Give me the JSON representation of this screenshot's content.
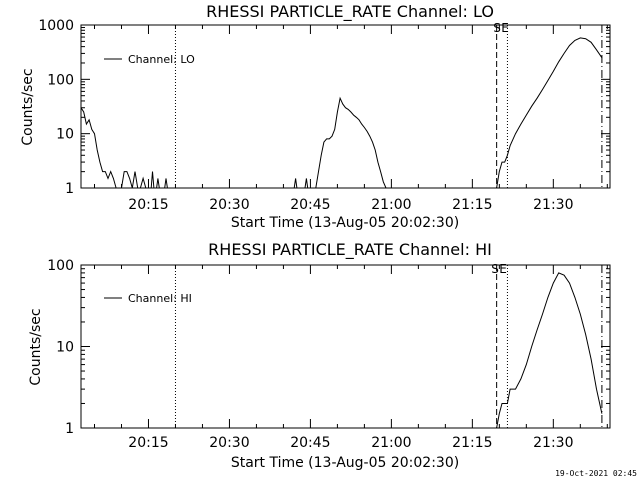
{
  "footer_timestamp": "19-Oct-2021 02:45",
  "colors": {
    "background": "#ffffff",
    "foreground": "#000000"
  },
  "chart_data": [
    {
      "type": "line",
      "title": "RHESSI PARTICLE_RATE Channel: LO",
      "xlabel": "Start Time (13-Aug-05 20:02:30)",
      "ylabel": "Counts/sec",
      "yscale": "log",
      "ylim": [
        1,
        1000
      ],
      "ytick_labels": [
        "1",
        "10",
        "100",
        "1000"
      ],
      "xlim": [
        "20:02:30",
        "21:40:30"
      ],
      "xtick_labels": [
        "20:15",
        "20:30",
        "20:45",
        "21:00",
        "21:15",
        "21:30"
      ],
      "legend_position": "top-left",
      "markers": [
        {
          "time": "20:20:00",
          "style": "dotted",
          "label": ""
        },
        {
          "time": "21:19:30",
          "style": "dashed",
          "label": "S"
        },
        {
          "time": "21:21:30",
          "style": "dotted",
          "label": "E"
        },
        {
          "time": "21:39:00",
          "style": "dash-dot",
          "label": ""
        }
      ],
      "series": [
        {
          "name": "Channel: LO",
          "segments": [
            [
              [
                "20:02:30",
                30
              ],
              [
                "20:03:00",
                25
              ],
              [
                "20:03:30",
                15
              ],
              [
                "20:04:00",
                18
              ],
              [
                "20:04:30",
                12
              ],
              [
                "20:05:00",
                10
              ],
              [
                "20:05:30",
                5
              ],
              [
                "20:06:00",
                3
              ],
              [
                "20:06:30",
                2
              ],
              [
                "20:07:00",
                2
              ],
              [
                "20:07:30",
                1.5
              ],
              [
                "20:08:00",
                2
              ],
              [
                "20:08:30",
                1.5
              ],
              [
                "20:09:00",
                1
              ],
              [
                "20:10:00",
                1
              ],
              [
                "20:10:30",
                2
              ],
              [
                "20:11:00",
                2
              ],
              [
                "20:11:30",
                1.5
              ],
              [
                "20:12:00",
                1
              ],
              [
                "20:12:30",
                2
              ],
              [
                "20:13:00",
                1
              ],
              [
                "20:13:30",
                1
              ],
              [
                "20:14:00",
                1.5
              ],
              [
                "20:14:30",
                1
              ],
              [
                "20:15:30",
                1
              ],
              [
                "20:15:45",
                2
              ],
              [
                "20:16:00",
                1
              ]
            ],
            [
              [
                "20:16:30",
                1
              ],
              [
                "20:16:45",
                1.5
              ],
              [
                "20:17:00",
                1
              ],
              [
                "20:18:00",
                1
              ],
              [
                "20:18:15",
                1.5
              ],
              [
                "20:18:30",
                1
              ]
            ],
            [
              [
                "20:42:00",
                1
              ],
              [
                "20:42:15",
                1.5
              ],
              [
                "20:42:30",
                1
              ]
            ],
            [
              [
                "20:44:00",
                1
              ],
              [
                "20:44:15",
                1.5
              ],
              [
                "20:44:30",
                1
              ]
            ],
            [
              [
                "20:46:00",
                1
              ],
              [
                "20:46:30",
                2
              ],
              [
                "20:47:00",
                4
              ],
              [
                "20:47:30",
                7
              ],
              [
                "20:48:00",
                8
              ],
              [
                "20:48:30",
                8
              ],
              [
                "20:49:00",
                9
              ],
              [
                "20:49:30",
                12
              ],
              [
                "20:50:00",
                25
              ],
              [
                "20:50:30",
                45
              ],
              [
                "20:51:00",
                35
              ],
              [
                "20:51:30",
                30
              ],
              [
                "20:52:00",
                28
              ],
              [
                "20:52:30",
                25
              ],
              [
                "20:53:00",
                22
              ],
              [
                "20:53:30",
                20
              ],
              [
                "20:54:00",
                18
              ],
              [
                "20:54:30",
                15
              ],
              [
                "20:55:00",
                13
              ],
              [
                "20:55:30",
                11
              ],
              [
                "20:56:00",
                9
              ],
              [
                "20:56:30",
                7
              ],
              [
                "20:57:00",
                5
              ],
              [
                "20:57:30",
                3
              ],
              [
                "20:58:00",
                2
              ],
              [
                "20:58:30",
                1.3
              ],
              [
                "20:59:00",
                1
              ]
            ],
            [
              [
                "21:19:30",
                1
              ],
              [
                "21:20:00",
                2
              ],
              [
                "21:20:30",
                3
              ],
              [
                "21:21:00",
                3
              ],
              [
                "21:21:30",
                4
              ],
              [
                "21:22:00",
                6
              ],
              [
                "21:23:00",
                10
              ],
              [
                "21:24:00",
                15
              ],
              [
                "21:25:00",
                22
              ],
              [
                "21:26:00",
                32
              ],
              [
                "21:27:00",
                45
              ],
              [
                "21:28:00",
                65
              ],
              [
                "21:29:00",
                95
              ],
              [
                "21:30:00",
                140
              ],
              [
                "21:31:00",
                210
              ],
              [
                "21:32:00",
                300
              ],
              [
                "21:33:00",
                420
              ],
              [
                "21:34:00",
                520
              ],
              [
                "21:35:00",
                580
              ],
              [
                "21:36:00",
                560
              ],
              [
                "21:37:00",
                480
              ],
              [
                "21:38:00",
                350
              ],
              [
                "21:39:00",
                250
              ]
            ]
          ]
        }
      ]
    },
    {
      "type": "line",
      "title": "RHESSI PARTICLE_RATE Channel: HI",
      "xlabel": "Start Time (13-Aug-05 20:02:30)",
      "ylabel": "Counts/sec",
      "yscale": "log",
      "ylim": [
        1,
        100
      ],
      "ytick_labels": [
        "1",
        "10",
        "100"
      ],
      "xlim": [
        "20:02:30",
        "21:40:30"
      ],
      "xtick_labels": [
        "20:15",
        "20:30",
        "20:45",
        "21:00",
        "21:15",
        "21:30"
      ],
      "legend_position": "top-left",
      "markers": [
        {
          "time": "20:20:00",
          "style": "dotted",
          "label": ""
        },
        {
          "time": "21:19:30",
          "style": "dashed",
          "label": "S"
        },
        {
          "time": "21:21:30",
          "style": "dotted",
          "label": "E"
        },
        {
          "time": "21:39:00",
          "style": "dash-dot",
          "label": ""
        }
      ],
      "series": [
        {
          "name": "Channel: HI",
          "segments": [
            [
              [
                "21:19:30",
                1
              ],
              [
                "21:20:00",
                1.5
              ],
              [
                "21:20:30",
                2
              ],
              [
                "21:21:30",
                2
              ],
              [
                "21:22:00",
                3
              ],
              [
                "21:23:00",
                3
              ],
              [
                "21:24:00",
                4
              ],
              [
                "21:25:00",
                6
              ],
              [
                "21:26:00",
                10
              ],
              [
                "21:27:00",
                16
              ],
              [
                "21:28:00",
                25
              ],
              [
                "21:29:00",
                40
              ],
              [
                "21:30:00",
                60
              ],
              [
                "21:31:00",
                80
              ],
              [
                "21:32:00",
                75
              ],
              [
                "21:33:00",
                60
              ],
              [
                "21:34:00",
                40
              ],
              [
                "21:35:00",
                25
              ],
              [
                "21:36:00",
                14
              ],
              [
                "21:37:00",
                7
              ],
              [
                "21:38:00",
                3
              ],
              [
                "21:39:00",
                1.5
              ]
            ]
          ]
        }
      ]
    }
  ]
}
